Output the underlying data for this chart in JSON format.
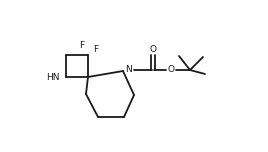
{
  "bg_color": "#ffffff",
  "line_color": "#1a1a1a",
  "line_width": 1.3,
  "font_size": 6.5,
  "figsize": [
    2.68,
    1.52
  ],
  "dpi": 100,
  "xlim": [
    0,
    268
  ],
  "ylim": [
    0,
    152
  ]
}
